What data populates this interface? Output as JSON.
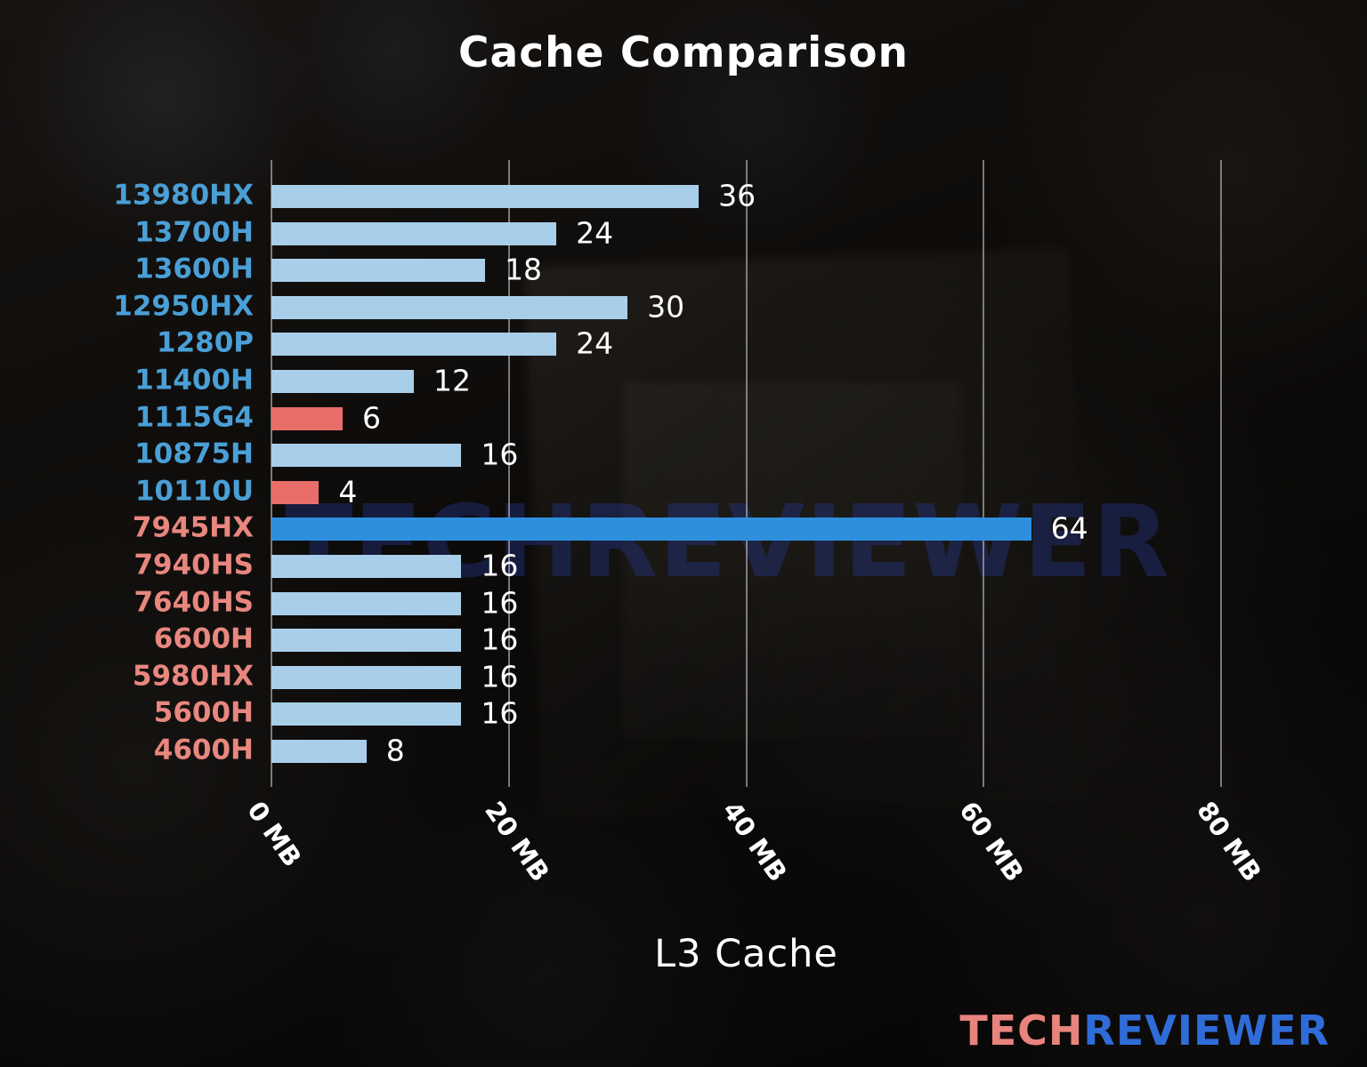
{
  "title": "Cache Comparison",
  "xlabel": "L3 Cache",
  "watermark": "TECHREVIEWER",
  "logo": {
    "part1": "TECH",
    "part2": "REVIEWER"
  },
  "colors": {
    "intel_label": "#4a9fd6",
    "amd_label": "#e8877f",
    "bar_light": "#a9cee9",
    "bar_highlight": "#2e8fdd",
    "bar_red": "#e96e69",
    "value_label": "#ffffff",
    "gridline": "rgba(195,195,195,0.6)",
    "logo_tech": "#e8837d",
    "logo_reviewer": "#2f6cd8"
  },
  "chart_data": {
    "type": "bar",
    "orientation": "horizontal",
    "title": "Cache Comparison",
    "xlabel": "L3 Cache",
    "unit": "MB",
    "xlim": [
      0,
      88
    ],
    "grid": true,
    "x_ticks": [
      {
        "value": 0,
        "label": "0 MB"
      },
      {
        "value": 20,
        "label": "20 MB"
      },
      {
        "value": 40,
        "label": "40 MB"
      },
      {
        "value": 60,
        "label": "60 MB"
      },
      {
        "value": 80,
        "label": "80 MB"
      }
    ],
    "bars": [
      {
        "label": "13980HX",
        "value": 36,
        "brand": "intel",
        "bar": "light"
      },
      {
        "label": "13700H",
        "value": 24,
        "brand": "intel",
        "bar": "light"
      },
      {
        "label": "13600H",
        "value": 18,
        "brand": "intel",
        "bar": "light"
      },
      {
        "label": "12950HX",
        "value": 30,
        "brand": "intel",
        "bar": "light"
      },
      {
        "label": "1280P",
        "value": 24,
        "brand": "intel",
        "bar": "light"
      },
      {
        "label": "11400H",
        "value": 12,
        "brand": "intel",
        "bar": "light"
      },
      {
        "label": "1115G4",
        "value": 6,
        "brand": "intel",
        "bar": "red"
      },
      {
        "label": "10875H",
        "value": 16,
        "brand": "intel",
        "bar": "light"
      },
      {
        "label": "10110U",
        "value": 4,
        "brand": "intel",
        "bar": "red"
      },
      {
        "label": "7945HX",
        "value": 64,
        "brand": "amd",
        "bar": "highlight"
      },
      {
        "label": "7940HS",
        "value": 16,
        "brand": "amd",
        "bar": "light"
      },
      {
        "label": "7640HS",
        "value": 16,
        "brand": "amd",
        "bar": "light"
      },
      {
        "label": "6600H",
        "value": 16,
        "brand": "amd",
        "bar": "light"
      },
      {
        "label": "5980HX",
        "value": 16,
        "brand": "amd",
        "bar": "light"
      },
      {
        "label": "5600H",
        "value": 16,
        "brand": "amd",
        "bar": "light"
      },
      {
        "label": "4600H",
        "value": 8,
        "brand": "amd",
        "bar": "light"
      }
    ]
  }
}
